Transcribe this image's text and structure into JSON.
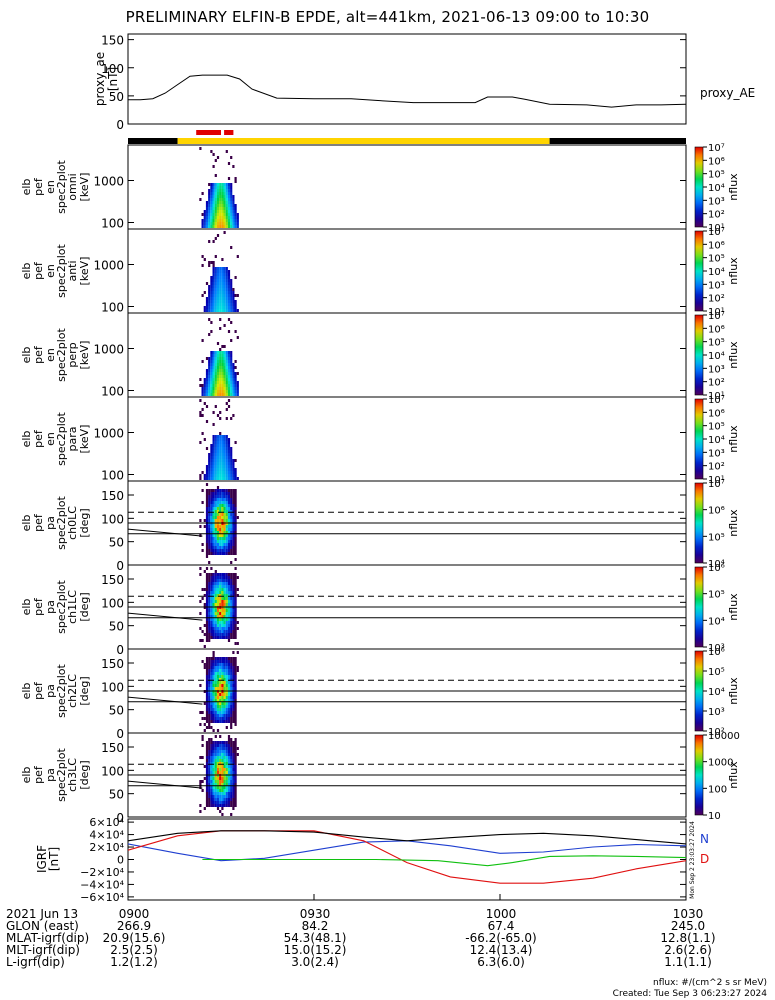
{
  "title": "PRELIMINARY ELFIN-B EPDE, alt=441km, 2021-06-13 09:00 to 10:30",
  "colors": {
    "axis": "#000000",
    "bar_black": "#000000",
    "bar_yellow": "#ffd400",
    "bar_red": "#e00000",
    "grf_n": "#1f3fd0",
    "grf_d": "#e01010",
    "grf_total": "#000000",
    "grf_extra": "#10c010"
  },
  "chart_data": [
    {
      "type": "line",
      "panel": "proxy_ae",
      "ylabel_lines": [
        "proxy_ae",
        "[nT]"
      ],
      "yticks": [
        "0",
        "50",
        "100",
        "150"
      ],
      "ylim": [
        0,
        160
      ],
      "series": [
        {
          "name": "proxy_AE",
          "x": [
            "09:00",
            "09:02",
            "09:04",
            "09:06",
            "09:08",
            "09:10",
            "09:12",
            "09:14",
            "09:16",
            "09:18",
            "09:20",
            "09:24",
            "09:30",
            "09:36",
            "09:40",
            "09:46",
            "09:50",
            "09:54",
            "09:56",
            "09:58",
            "10:00",
            "10:02",
            "10:04",
            "10:08",
            "10:14",
            "10:18",
            "10:22",
            "10:26",
            "10:30"
          ],
          "y": [
            43,
            43,
            45,
            55,
            70,
            85,
            87,
            87,
            87,
            80,
            62,
            46,
            45,
            45,
            42,
            38,
            38,
            38,
            38,
            48,
            48,
            48,
            44,
            35,
            34,
            30,
            34,
            34,
            35
          ]
        }
      ]
    },
    {
      "type": "heatmap",
      "panel": "en_omni",
      "ylabel_lines": [
        "elb",
        "pef",
        "en",
        "spec2plot",
        "omni",
        "[keV]"
      ],
      "yscale": "log",
      "yticks": [
        "100",
        "1000"
      ],
      "colorbar": {
        "label": "nflux",
        "ticks": [
          "10¹",
          "10²",
          "10³",
          "10⁴",
          "10⁵",
          "10⁶",
          "10⁷"
        ]
      }
    },
    {
      "type": "heatmap",
      "panel": "en_anti",
      "ylabel_lines": [
        "elb",
        "pef",
        "en",
        "spec2plot",
        "anti",
        "[keV]"
      ],
      "yscale": "log",
      "yticks": [
        "100",
        "1000"
      ],
      "colorbar": {
        "label": "nflux",
        "ticks": [
          "10¹",
          "10²",
          "10³",
          "10⁴",
          "10⁵",
          "10⁶",
          "10⁷"
        ]
      }
    },
    {
      "type": "heatmap",
      "panel": "en_perp",
      "ylabel_lines": [
        "elb",
        "pef",
        "en",
        "spec2plot",
        "perp",
        "[keV]"
      ],
      "yscale": "log",
      "yticks": [
        "100",
        "1000"
      ],
      "colorbar": {
        "label": "nflux",
        "ticks": [
          "10¹",
          "10²",
          "10³",
          "10⁴",
          "10⁵",
          "10⁶",
          "10⁷"
        ]
      }
    },
    {
      "type": "heatmap",
      "panel": "en_para",
      "ylabel_lines": [
        "elb",
        "pef",
        "en",
        "spec2plot",
        "para",
        "[keV]"
      ],
      "yscale": "log",
      "yticks": [
        "100",
        "1000"
      ],
      "colorbar": {
        "label": "nflux",
        "ticks": [
          "10¹",
          "10²",
          "10³",
          "10⁴",
          "10⁵",
          "10⁶",
          "10⁷"
        ]
      }
    },
    {
      "type": "heatmap",
      "panel": "pa_ch0LC",
      "ylabel_lines": [
        "elb",
        "pef",
        "pa",
        "spec2plot",
        "ch0LC",
        "[deg]"
      ],
      "yticks": [
        "0",
        "50",
        "100",
        "150"
      ],
      "ylim": [
        0,
        180
      ],
      "colorbar": {
        "label": "nflux",
        "ticks": [
          "10⁴",
          "10⁵",
          "10⁶",
          "10⁷"
        ]
      }
    },
    {
      "type": "heatmap",
      "panel": "pa_ch1LC",
      "ylabel_lines": [
        "elb",
        "pef",
        "pa",
        "spec2plot",
        "ch1LC",
        "[deg]"
      ],
      "yticks": [
        "0",
        "50",
        "100",
        "150"
      ],
      "ylim": [
        0,
        180
      ],
      "colorbar": {
        "label": "nflux",
        "ticks": [
          "10³",
          "10⁴",
          "10⁵",
          "10⁶"
        ]
      }
    },
    {
      "type": "heatmap",
      "panel": "pa_ch2LC",
      "ylabel_lines": [
        "elb",
        "pef",
        "pa",
        "spec2plot",
        "ch2LC",
        "[deg]"
      ],
      "yticks": [
        "0",
        "50",
        "100",
        "150"
      ],
      "ylim": [
        0,
        180
      ],
      "colorbar": {
        "label": "nflux",
        "ticks": [
          "10²",
          "10³",
          "10⁴",
          "10⁵",
          "10⁶"
        ]
      }
    },
    {
      "type": "heatmap",
      "panel": "pa_ch3LC",
      "ylabel_lines": [
        "elb",
        "pef",
        "pa",
        "spec2plot",
        "ch3LC",
        "[deg]"
      ],
      "yticks": [
        "0",
        "50",
        "100",
        "150"
      ],
      "ylim": [
        0,
        180
      ],
      "colorbar": {
        "label": "nflux",
        "ticks": [
          "10",
          "100",
          "1000",
          "10000"
        ]
      }
    },
    {
      "type": "line",
      "panel": "IGRF",
      "ylabel_lines": [
        "IGRF",
        "[nT]"
      ],
      "yticks": [
        "−6×10⁴",
        "−4×10⁴",
        "−2×10⁴",
        "0",
        "2×10⁴",
        "4×10⁴",
        "6×10⁴"
      ],
      "ylim": [
        -65000,
        65000
      ],
      "legend": [
        "N",
        "D"
      ],
      "series": [
        {
          "name": "N",
          "x": [
            0,
            8,
            15,
            22,
            30,
            38,
            45,
            52,
            60,
            67,
            75,
            82,
            90
          ],
          "y": [
            25000,
            10000,
            -2000,
            2000,
            15000,
            28000,
            30000,
            22000,
            10000,
            12000,
            20000,
            24000,
            22000
          ]
        },
        {
          "name": "D",
          "x": [
            0,
            8,
            15,
            22,
            30,
            38,
            45,
            52,
            60,
            67,
            75,
            82,
            90
          ],
          "y": [
            15000,
            38000,
            46000,
            46000,
            46000,
            30000,
            -5000,
            -28000,
            -38000,
            -38000,
            -30000,
            -15000,
            -2000
          ]
        },
        {
          "x": [
            0,
            8,
            15,
            22,
            30,
            38,
            45,
            52,
            60,
            67,
            75,
            82,
            90
          ],
          "y": [
            30000,
            42000,
            46000,
            46000,
            44000,
            36000,
            30000,
            35000,
            40000,
            42000,
            38000,
            32000,
            25000
          ]
        },
        {
          "x": [
            12,
            20,
            30,
            40,
            50,
            58,
            62,
            68,
            75,
            82,
            90
          ],
          "y": [
            0,
            0,
            0,
            0,
            -2000,
            -10000,
            -5000,
            5000,
            6000,
            5000,
            3000
          ]
        }
      ]
    }
  ],
  "time_axis": {
    "start": "09:00",
    "end": "10:30",
    "ticks": [
      {
        "t": "09:00",
        "label": "0900"
      },
      {
        "t": "09:30",
        "label": "0930"
      },
      {
        "t": "10:00",
        "label": "1000"
      },
      {
        "t": "10:30",
        "label": "1030"
      }
    ]
  },
  "status_bar": {
    "segments": [
      {
        "from": "09:00",
        "to": "09:08",
        "color": "black"
      },
      {
        "from": "09:08",
        "to": "10:08",
        "color": "yellow"
      },
      {
        "from": "10:08",
        "to": "10:30",
        "color": "black"
      }
    ],
    "marks": [
      {
        "from": "09:11",
        "to": "09:15",
        "color": "red"
      },
      {
        "from": "09:15.5",
        "to": "09:17",
        "color": "red"
      }
    ]
  },
  "ephemeris": {
    "rows": [
      {
        "label": "2021 Jun 13",
        "values": [
          "0900",
          "0930",
          "1000",
          "1030"
        ]
      },
      {
        "label": "GLON (east)",
        "values": [
          "266.9",
          "84.2",
          "67.4",
          "245.0"
        ]
      },
      {
        "label": "MLAT-igrf(dip)",
        "values": [
          "20.9(15.6)",
          "54.3(48.1)",
          "-66.2(-65.0)",
          "12.8(1.1)"
        ]
      },
      {
        "label": "MLT-igrf(dip)",
        "values": [
          "2.5(2.5)",
          "15.0(15.2)",
          "12.4(13.4)",
          "2.6(2.6)"
        ]
      },
      {
        "label": "L-igrf(dip)",
        "values": [
          "1.2(1.2)",
          "3.0(2.4)",
          "6.3(6.0)",
          "1.1(1.1)"
        ]
      }
    ]
  },
  "footer": {
    "units": "nflux: #/(cm^2 s sr MeV)",
    "created": "Created: Tue Sep  3 06:23:27 2024",
    "side_stamp": "Mon Sep  2 23:03:27 2024"
  }
}
